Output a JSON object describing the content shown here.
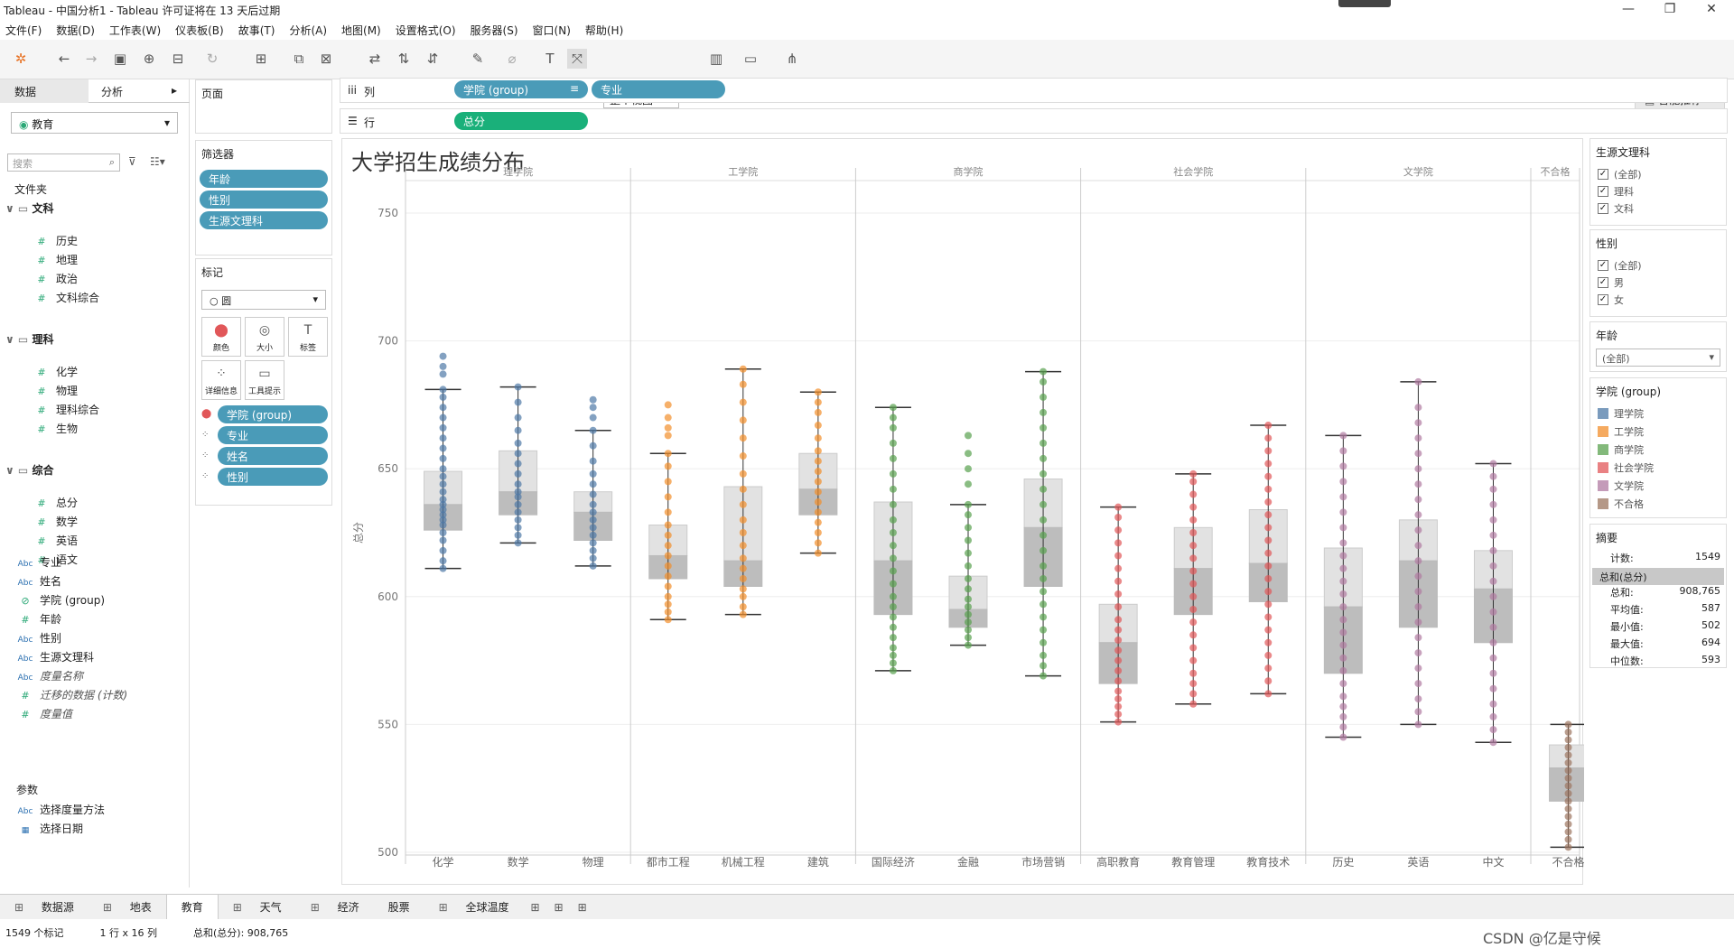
{
  "window": {
    "title": "Tableau - 中国分析1 - Tableau 许可证将在 13 天后过期"
  },
  "menu": [
    "文件(F)",
    "数据(D)",
    "工作表(W)",
    "仪表板(B)",
    "故事(T)",
    "分析(A)",
    "地图(M)",
    "设置格式(O)",
    "服务器(S)",
    "窗口(N)",
    "帮助(H)"
  ],
  "toolbar": {
    "view_select": "整个视图",
    "smart": "智能推荐"
  },
  "left": {
    "tab_data": "数据",
    "tab_analysis": "分析",
    "datasource": "教育",
    "search_placeholder": "搜索",
    "folder_label": "文件夹",
    "groups": [
      {
        "name": "文科",
        "fields": [
          "历史",
          "地理",
          "政治",
          "文科综合"
        ]
      },
      {
        "name": "理科",
        "fields": [
          "化学",
          "物理",
          "理科综合",
          "生物"
        ]
      },
      {
        "name": "综合",
        "fields": [
          "总分",
          "数学",
          "英语",
          "语文"
        ]
      }
    ],
    "dims": [
      {
        "type": "Abc",
        "name": "专业"
      },
      {
        "type": "Abc",
        "name": "姓名"
      },
      {
        "type": "clip",
        "name": "学院 (group)"
      },
      {
        "type": "#",
        "name": "年龄"
      },
      {
        "type": "Abc",
        "name": "性别"
      },
      {
        "type": "Abc",
        "name": "生源文理科"
      },
      {
        "type": "Abc",
        "name": "度量名称"
      },
      {
        "type": "#",
        "name": "迁移的数据 (计数)"
      },
      {
        "type": "#",
        "name": "度量值"
      }
    ],
    "params_label": "参数",
    "params": [
      "选择度量方法",
      "选择日期"
    ]
  },
  "mid": {
    "pages_label": "页面",
    "filters_label": "筛选器",
    "filters": [
      "年龄",
      "性别",
      "生源文理科"
    ],
    "marks_label": "标记",
    "mark_type": "圆",
    "mark_btns": [
      "颜色",
      "大小",
      "标签",
      "详细信息",
      "工具提示"
    ],
    "mark_pills": [
      "学院 (group)",
      "专业",
      "姓名",
      "性别"
    ]
  },
  "shelves": {
    "cols_label": "列",
    "rows_label": "行",
    "cols": [
      "学院 (group)",
      "专业"
    ],
    "rows": [
      "总分"
    ]
  },
  "right": {
    "f1_title": "生源文理科",
    "f1_items": [
      "(全部)",
      "理科",
      "文科"
    ],
    "f2_title": "性别",
    "f2_items": [
      "(全部)",
      "男",
      "女"
    ],
    "f3_title": "年龄",
    "f3_value": "(全部)",
    "legend_title": "学院 (group)",
    "summary_title": "摘要",
    "summary_header": "总和(总分)",
    "summary": [
      [
        "计数:",
        "1549"
      ],
      [
        "总和:",
        "908,765"
      ],
      [
        "平均值:",
        "587"
      ],
      [
        "最小值:",
        "502"
      ],
      [
        "最大值:",
        "694"
      ],
      [
        "中位数:",
        "593"
      ]
    ]
  },
  "bottom": {
    "tabs": [
      "数据源",
      "地表",
      "教育",
      "天气",
      "经济",
      "股票",
      "全球温度"
    ],
    "active": "教育"
  },
  "status": {
    "marks": "1549 个标记",
    "dims": "1 行 x 16 列",
    "sum": "总和(总分): 908,765"
  },
  "watermark": "CSDN @亿是守候",
  "colors": {
    "理学院": "#4e79a7",
    "工学院": "#f28e2b",
    "商学院": "#59a14f",
    "社会学院": "#e15759",
    "文学院": "#b07aa1",
    "不合格": "#9c755f"
  },
  "chart_data": {
    "type": "scatter",
    "title": "大学招生成绩分布",
    "ylabel": "总分",
    "ylim": [
      500,
      750
    ],
    "yticks": [
      500,
      550,
      600,
      650,
      700,
      750
    ],
    "groups": [
      "理学院",
      "工学院",
      "商学院",
      "社会学院",
      "文学院",
      "不合格"
    ],
    "categories": [
      {
        "group": "理学院",
        "name": "化学",
        "whisker": [
          611,
          681
        ],
        "q1": 626,
        "median": 636,
        "q3": 649,
        "points": [
          611,
          614,
          618,
          622,
          625,
          628,
          630,
          632,
          634,
          636,
          638,
          641,
          644,
          647,
          650,
          654,
          658,
          662,
          666,
          670,
          674,
          678,
          681,
          687,
          690,
          694
        ]
      },
      {
        "group": "理学院",
        "name": "数学",
        "whisker": [
          621,
          682
        ],
        "q1": 632,
        "median": 641,
        "q3": 657,
        "points": [
          621,
          624,
          627,
          630,
          633,
          636,
          639,
          641,
          644,
          648,
          652,
          656,
          660,
          665,
          670,
          676,
          682
        ]
      },
      {
        "group": "理学院",
        "name": "物理",
        "whisker": [
          612,
          665
        ],
        "q1": 622,
        "median": 633,
        "q3": 641,
        "points": [
          612,
          615,
          618,
          621,
          624,
          627,
          630,
          633,
          636,
          640,
          644,
          648,
          653,
          659,
          665,
          670,
          674,
          677
        ]
      },
      {
        "group": "工学院",
        "name": "都市工程",
        "whisker": [
          591,
          656
        ],
        "q1": 607,
        "median": 616,
        "q3": 628,
        "points": [
          591,
          594,
          597,
          600,
          604,
          608,
          612,
          616,
          620,
          624,
          628,
          633,
          639,
          645,
          651,
          656,
          663,
          666,
          670,
          675
        ]
      },
      {
        "group": "工学院",
        "name": "机械工程",
        "whisker": [
          593,
          689
        ],
        "q1": 604,
        "median": 614,
        "q3": 643,
        "points": [
          593,
          596,
          600,
          603,
          607,
          611,
          615,
          620,
          625,
          630,
          636,
          642,
          648,
          655,
          662,
          669,
          676,
          683,
          689
        ]
      },
      {
        "group": "工学院",
        "name": "建筑",
        "whisker": [
          617,
          680
        ],
        "q1": 632,
        "median": 642,
        "q3": 656,
        "points": [
          617,
          621,
          625,
          629,
          633,
          637,
          641,
          645,
          649,
          653,
          657,
          662,
          667,
          672,
          676,
          680
        ]
      },
      {
        "group": "商学院",
        "name": "国际经济",
        "whisker": [
          571,
          674
        ],
        "q1": 593,
        "median": 614,
        "q3": 637,
        "points": [
          571,
          574,
          577,
          580,
          584,
          588,
          592,
          596,
          600,
          605,
          610,
          615,
          620,
          625,
          630,
          636,
          642,
          648,
          654,
          660,
          666,
          670,
          674
        ]
      },
      {
        "group": "商学院",
        "name": "金融",
        "whisker": [
          581,
          636
        ],
        "q1": 588,
        "median": 595,
        "q3": 608,
        "points": [
          581,
          584,
          587,
          590,
          593,
          596,
          599,
          603,
          607,
          612,
          617,
          622,
          627,
          632,
          636,
          644,
          650,
          656,
          663
        ]
      },
      {
        "group": "商学院",
        "name": "市场营销",
        "whisker": [
          569,
          688
        ],
        "q1": 604,
        "median": 627,
        "q3": 646,
        "points": [
          569,
          573,
          577,
          582,
          587,
          592,
          597,
          602,
          607,
          612,
          618,
          624,
          630,
          636,
          642,
          648,
          654,
          660,
          666,
          672,
          678,
          684,
          688
        ]
      },
      {
        "group": "社会学院",
        "name": "高职教育",
        "whisker": [
          551,
          635
        ],
        "q1": 566,
        "median": 582,
        "q3": 597,
        "points": [
          551,
          554,
          557,
          560,
          563,
          567,
          571,
          575,
          579,
          583,
          587,
          591,
          596,
          601,
          606,
          611,
          616,
          621,
          626,
          631,
          635
        ]
      },
      {
        "group": "社会学院",
        "name": "教育管理",
        "whisker": [
          558,
          648
        ],
        "q1": 593,
        "median": 611,
        "q3": 627,
        "points": [
          558,
          562,
          566,
          570,
          575,
          580,
          585,
          590,
          595,
          600,
          605,
          610,
          615,
          620,
          625,
          630,
          635,
          640,
          645,
          648
        ]
      },
      {
        "group": "社会学院",
        "name": "教育技术",
        "whisker": [
          562,
          667
        ],
        "q1": 598,
        "median": 613,
        "q3": 634,
        "points": [
          562,
          567,
          572,
          577,
          582,
          587,
          592,
          597,
          602,
          607,
          612,
          617,
          622,
          627,
          632,
          637,
          642,
          647,
          652,
          657,
          662,
          667
        ]
      },
      {
        "group": "文学院",
        "name": "历史",
        "whisker": [
          545,
          663
        ],
        "q1": 570,
        "median": 596,
        "q3": 619,
        "points": [
          545,
          549,
          553,
          557,
          561,
          566,
          571,
          576,
          581,
          586,
          591,
          596,
          601,
          606,
          611,
          616,
          621,
          627,
          633,
          639,
          645,
          651,
          657,
          663
        ]
      },
      {
        "group": "文学院",
        "name": "英语",
        "whisker": [
          550,
          684
        ],
        "q1": 588,
        "median": 614,
        "q3": 630,
        "points": [
          550,
          555,
          560,
          566,
          572,
          578,
          584,
          590,
          596,
          602,
          608,
          614,
          620,
          626,
          632,
          638,
          644,
          650,
          656,
          662,
          668,
          674,
          684
        ]
      },
      {
        "group": "文学院",
        "name": "中文",
        "whisker": [
          543,
          652
        ],
        "q1": 582,
        "median": 603,
        "q3": 618,
        "points": [
          543,
          548,
          553,
          558,
          564,
          570,
          576,
          582,
          588,
          594,
          600,
          606,
          612,
          618,
          624,
          630,
          636,
          642,
          647,
          652
        ]
      },
      {
        "group": "不合格",
        "name": "不合格",
        "whisker": [
          502,
          550
        ],
        "q1": 520,
        "median": 533,
        "q3": 542,
        "points": [
          502,
          505,
          508,
          511,
          514,
          517,
          520,
          523,
          526,
          529,
          532,
          535,
          538,
          541,
          544,
          547,
          550
        ]
      }
    ]
  }
}
